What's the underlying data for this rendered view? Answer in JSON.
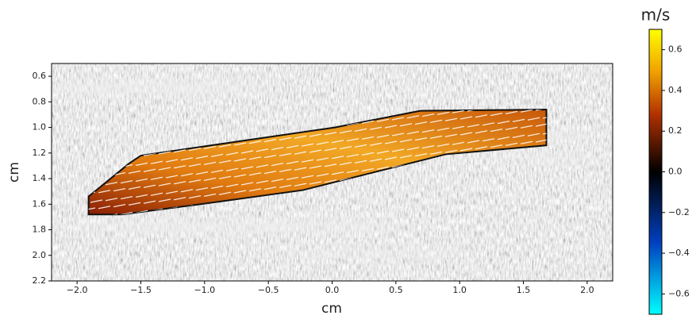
{
  "chart_data": {
    "type": "flow-map",
    "xlabel": "cm",
    "ylabel": "cm",
    "colorbar_label": "m/s",
    "xlim": [
      -2.2,
      2.2
    ],
    "ylim": [
      2.2,
      0.5
    ],
    "xticks": [
      {
        "value": -2,
        "label": "−2.0"
      },
      {
        "value": -1.5,
        "label": "−1.5"
      },
      {
        "value": -1,
        "label": "−1.0"
      },
      {
        "value": -0.5,
        "label": "−0.5"
      },
      {
        "value": 0,
        "label": "0.0"
      },
      0.5,
      {
        "value": 1,
        "label": "1.0"
      },
      1.5,
      {
        "value": 2,
        "label": "2.0"
      }
    ],
    "yticks": [
      0.6,
      0.8,
      {
        "value": 1,
        "label": "1.0"
      },
      1.2,
      1.4,
      1.6,
      1.8,
      {
        "value": 2,
        "label": "2.0"
      },
      2.2
    ],
    "clim": [
      -0.7,
      0.7
    ],
    "cticks": [
      0.6,
      0.4,
      0.2,
      {
        "value": 0,
        "label": "0.0"
      },
      {
        "value": -0.2,
        "label": "−0.2"
      },
      {
        "value": -0.4,
        "label": "−0.4"
      },
      {
        "value": -0.6,
        "label": "−0.6"
      }
    ],
    "region": {
      "x": [
        -1.91,
        -1.91,
        -1.59,
        -1.5,
        0.02,
        0.69,
        1.68,
        1.68,
        0.89,
        -0.23,
        -1.03,
        -1.65
      ],
      "y": [
        1.68,
        1.54,
        1.28,
        1.22,
        1.0,
        0.87,
        0.86,
        1.14,
        1.21,
        1.49,
        1.6,
        1.68
      ]
    }
  }
}
